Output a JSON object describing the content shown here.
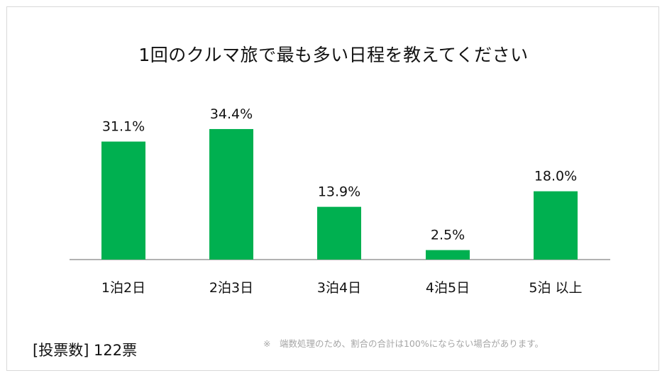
{
  "vote_count": "[投票数] 122票",
  "footnote": "※　端数処理のため、割合の合計は100%にならない場合があります。",
  "colors": {
    "bar": "#00b050",
    "axis": "#999999"
  },
  "chart_data": {
    "type": "bar",
    "title": "1回のクルマ旅で最も多い日程を教えてください",
    "categories": [
      "1泊2日",
      "2泊3日",
      "3泊4日",
      "4泊5日",
      "5泊 以上"
    ],
    "values": [
      31.1,
      34.4,
      13.9,
      2.5,
      18.0
    ],
    "value_labels": [
      "31.1%",
      "34.4%",
      "13.9%",
      "2.5%",
      "18.0%"
    ],
    "xlabel": "",
    "ylabel": "",
    "ylim": [
      0,
      40
    ],
    "grid": false,
    "legend": "none"
  }
}
